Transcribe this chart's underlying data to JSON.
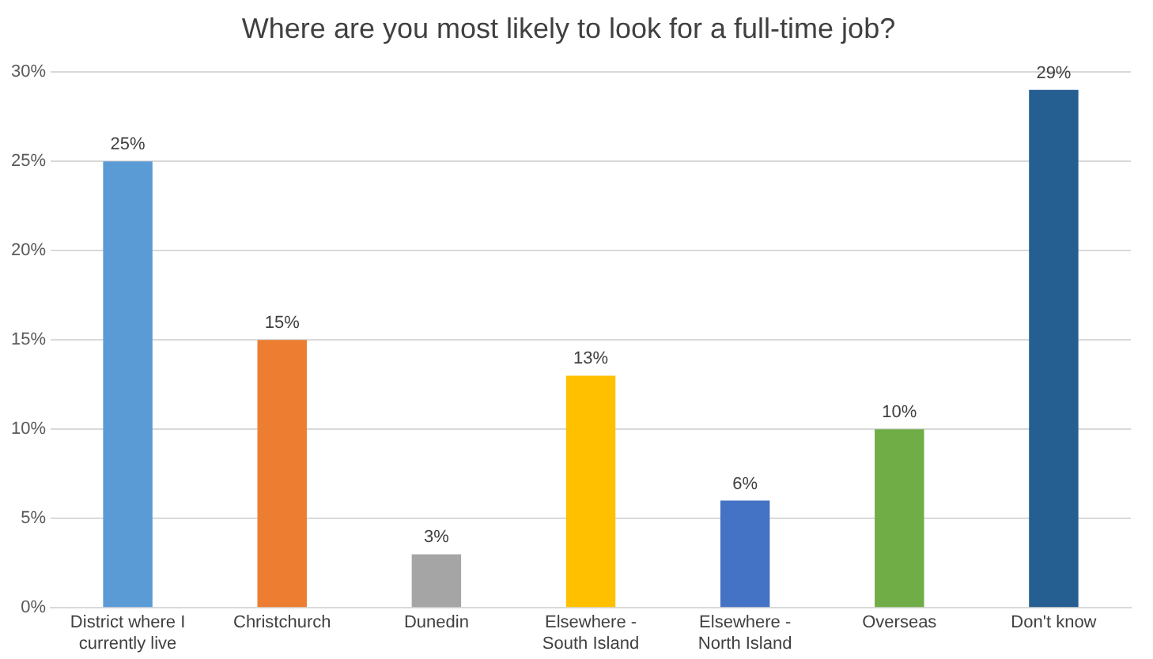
{
  "chart_data": {
    "type": "bar",
    "title": "Where are you most likely to look for a full-time job?",
    "categories": [
      "District where I currently live",
      "Christchurch",
      "Dunedin",
      "Elsewhere - South Island",
      "Elsewhere - North Island",
      "Overseas",
      "Don't know"
    ],
    "values": [
      25,
      15,
      3,
      13,
      6,
      10,
      29
    ],
    "colors": [
      "#5b9bd5",
      "#ed7d31",
      "#a5a5a5",
      "#ffc000",
      "#4472c4",
      "#70ad47",
      "#255e91"
    ],
    "value_labels": [
      "25%",
      "15%",
      "3%",
      "13%",
      "6%",
      "10%",
      "29%"
    ],
    "ylim": [
      0,
      30
    ],
    "yticks": [
      {
        "value": 0,
        "label": "0%"
      },
      {
        "value": 5,
        "label": "5%"
      },
      {
        "value": 10,
        "label": "10%"
      },
      {
        "value": 15,
        "label": "15%"
      },
      {
        "value": 20,
        "label": "20%"
      },
      {
        "value": 25,
        "label": "25%"
      },
      {
        "value": 30,
        "label": "30%"
      }
    ],
    "grid": "y",
    "legend": false
  }
}
